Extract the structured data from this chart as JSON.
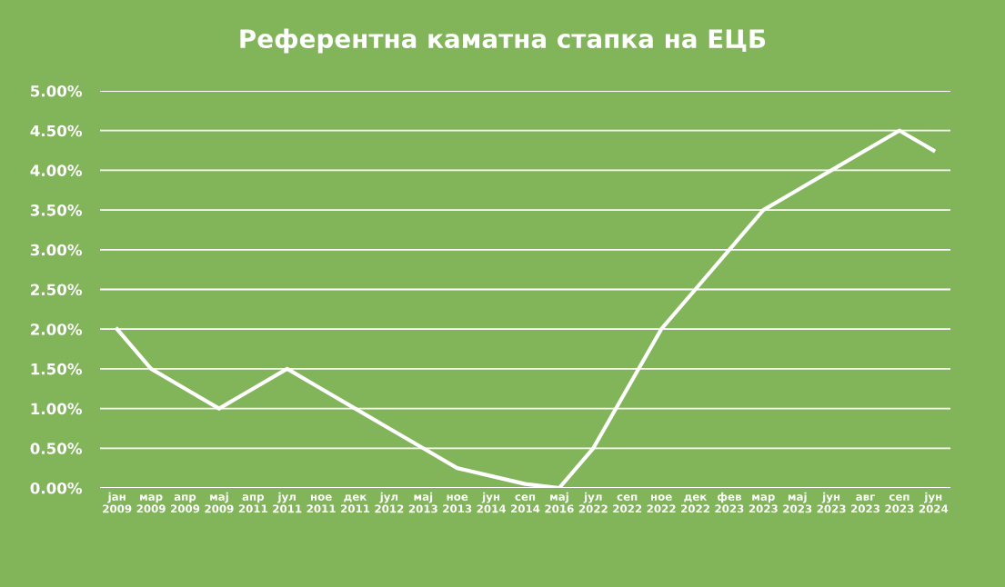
{
  "chart_data": {
    "type": "line",
    "title": "Референтна каматна стапка на ЕЦБ",
    "categories": [
      "јан\n2009",
      "мар\n2009",
      "апр\n2009",
      "мај\n2009",
      "апр\n2011",
      "јул\n2011",
      "ное\n2011",
      "дек\n2011",
      "јул\n2012",
      "мај\n2013",
      "ное\n2013",
      "јун\n2014",
      "сеп\n2014",
      "мај\n2016",
      "јул\n2022",
      "сеп\n2022",
      "ное\n2022",
      "дек\n2022",
      "фев\n2023",
      "мар\n2023",
      "мај\n2023",
      "јун\n2023",
      "авг\n2023",
      "сеп\n2023",
      "јун\n2024"
    ],
    "series": [
      {
        "color": "#ffffff",
        "values": [
          2.0,
          1.5,
          1.25,
          1.0,
          1.25,
          1.5,
          1.25,
          1.0,
          0.75,
          0.5,
          0.25,
          0.15,
          0.05,
          0.0,
          0.5,
          1.25,
          2.0,
          2.5,
          3.0,
          3.5,
          3.75,
          4.0,
          4.25,
          4.5,
          4.25
        ]
      }
    ],
    "ylim": [
      0,
      5
    ],
    "yticks": [
      {
        "value": 0,
        "label": "0.00%"
      },
      {
        "value": 0.5,
        "label": "0.50%"
      },
      {
        "value": 1,
        "label": "1.00%"
      },
      {
        "value": 1.5,
        "label": "1.50%"
      },
      {
        "value": 2,
        "label": "2.00%"
      },
      {
        "value": 2.5,
        "label": "2.50%"
      },
      {
        "value": 3,
        "label": "3.00%"
      },
      {
        "value": 3.5,
        "label": "3.50%"
      },
      {
        "value": 4,
        "label": "4.00%"
      },
      {
        "value": 4.5,
        "label": "4.50%"
      },
      {
        "value": 5,
        "label": "5.00%"
      }
    ],
    "grid": "y",
    "marker": "none",
    "line_style": "solid"
  }
}
